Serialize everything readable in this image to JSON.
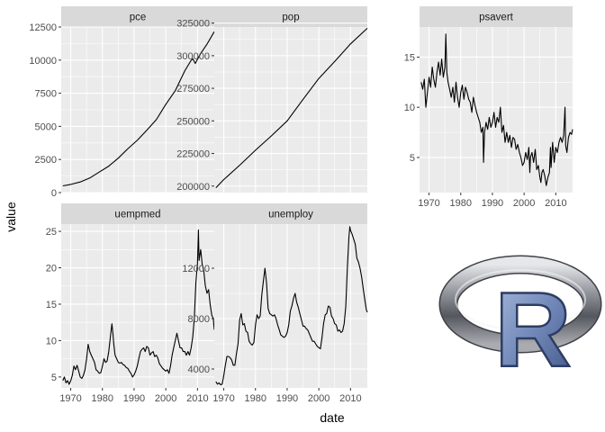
{
  "colors": {
    "panel_bg": "#ebebeb",
    "strip_bg": "#d9d9d9",
    "grid": "#ffffff",
    "line": "#000000",
    "tick_text": "#4d4d4d",
    "logo_ring": "#9a9ca3",
    "logo_letter": "#6d84b5"
  },
  "logo": {
    "icon": "r-logo-icon",
    "letter": "R"
  },
  "chart_data": {
    "type": "line",
    "facet_by": "variable",
    "xlabel": "date",
    "ylabel": "value",
    "xlim": [
      1967,
      2015.3
    ],
    "x_ticks": [
      1970,
      1980,
      1990,
      2000,
      2010
    ],
    "x_tick_labels": [
      "1970",
      "1980",
      "1990",
      "2000",
      "2010"
    ],
    "grid": true,
    "panels": [
      {
        "name": "pce",
        "ylim": [
          0,
          12500
        ],
        "y_ticks": [
          0,
          2500,
          5000,
          7500,
          10000,
          12500
        ],
        "y_tick_labels": [
          "0",
          "2500",
          "5000",
          "7500",
          "10000",
          "12500"
        ],
        "x": [
          1967.5,
          1970,
          1973,
          1976,
          1979,
          1982,
          1985,
          1988,
          1991,
          1994,
          1997,
          2000,
          2003,
          2006,
          2007.9,
          2008.5,
          2009.3,
          2011,
          2013,
          2015.3
        ],
        "y": [
          507,
          620,
          800,
          1100,
          1550,
          2000,
          2600,
          3300,
          3950,
          4700,
          5500,
          6650,
          7700,
          9200,
          9950,
          10100,
          9750,
          10500,
          11200,
          12150
        ]
      },
      {
        "name": "pop",
        "ylim": [
          195000,
          322000
        ],
        "y_ticks": [
          200000,
          225000,
          250000,
          275000,
          300000,
          325000
        ],
        "y_tick_labels": [
          "200000",
          "225000",
          "250000",
          "275000",
          "300000",
          "325000"
        ],
        "x": [
          1967.5,
          1970,
          1975,
          1980,
          1985,
          1990,
          1995,
          2000,
          2005,
          2010,
          2015.3
        ],
        "y": [
          198700,
          205000,
          216000,
          227500,
          238500,
          250000,
          266500,
          282500,
          295500,
          309000,
          321000
        ]
      },
      {
        "name": "psavert",
        "ylim": [
          1.5,
          18
        ],
        "y_ticks": [
          5,
          10,
          15
        ],
        "y_tick_labels": [
          "5",
          "10",
          "15"
        ],
        "x": [
          1967.5,
          1968,
          1968.5,
          1969,
          1969.5,
          1970,
          1970.5,
          1971,
          1971.5,
          1972,
          1972.5,
          1973,
          1973.5,
          1974,
          1974.5,
          1975,
          1975.3,
          1975.6,
          1976,
          1976.5,
          1977,
          1977.5,
          1978,
          1978.5,
          1979,
          1979.5,
          1980,
          1980.5,
          1981,
          1981.5,
          1982,
          1982.5,
          1983,
          1983.5,
          1984,
          1984.5,
          1985,
          1985.5,
          1986,
          1986.5,
          1987,
          1987.2,
          1987.5,
          1988,
          1988.5,
          1989,
          1989.5,
          1990,
          1990.5,
          1991,
          1991.5,
          1992,
          1992.5,
          1993,
          1993.5,
          1994,
          1994.5,
          1995,
          1995.5,
          1996,
          1996.5,
          1997,
          1997.5,
          1998,
          1998.5,
          1999,
          1999.5,
          2000,
          2000.5,
          2001,
          2001.5,
          2001.8,
          2002,
          2002.5,
          2003,
          2003.5,
          2004,
          2004.5,
          2005,
          2005.3,
          2005.6,
          2006,
          2006.5,
          2007,
          2007.5,
          2008,
          2008.3,
          2008.5,
          2009,
          2009.5,
          2010,
          2010.5,
          2011,
          2011.5,
          2012,
          2012.5,
          2012.9,
          2013.1,
          2013.5,
          2014,
          2014.5,
          2015,
          2015.3
        ],
        "y": [
          12.5,
          11.8,
          12.8,
          10.0,
          11.5,
          13.0,
          12.0,
          14.0,
          12.8,
          12.0,
          13.5,
          14.5,
          13.2,
          14.8,
          13.0,
          14.0,
          17.3,
          13.5,
          12.5,
          11.8,
          11.0,
          12.0,
          10.5,
          12.5,
          11.0,
          10.0,
          11.5,
          12.2,
          10.8,
          12.0,
          11.5,
          10.8,
          10.5,
          9.5,
          11.0,
          10.2,
          9.5,
          9.0,
          8.5,
          7.5,
          8.0,
          4.5,
          7.5,
          8.5,
          7.8,
          9.0,
          8.0,
          8.5,
          9.5,
          8.0,
          9.0,
          8.5,
          10.0,
          7.5,
          8.2,
          6.5,
          7.5,
          6.5,
          7.2,
          6.0,
          7.0,
          6.8,
          5.8,
          6.3,
          5.5,
          5.0,
          4.2,
          4.5,
          5.5,
          4.8,
          6.0,
          3.5,
          5.0,
          5.5,
          4.5,
          5.8,
          3.8,
          4.2,
          3.0,
          2.5,
          3.5,
          3.8,
          3.2,
          2.2,
          3.0,
          3.5,
          6.0,
          4.0,
          6.5,
          4.5,
          6.0,
          5.5,
          6.5,
          7.0,
          6.5,
          7.2,
          10.0,
          6.2,
          5.5,
          7.0,
          7.5,
          7.3,
          7.8
        ]
      },
      {
        "name": "uempmed",
        "ylim": [
          3.5,
          26
        ],
        "y_ticks": [
          5,
          10,
          15,
          20,
          25
        ],
        "y_tick_labels": [
          "5",
          "10",
          "15",
          "20",
          "25"
        ],
        "x": [
          1967.5,
          1968,
          1968.5,
          1969,
          1969.5,
          1970,
          1970.5,
          1971,
          1971.5,
          1972,
          1972.5,
          1973,
          1973.5,
          1974,
          1974.5,
          1975,
          1975.5,
          1976,
          1976.5,
          1977,
          1977.5,
          1978,
          1978.5,
          1979,
          1979.5,
          1980,
          1980.5,
          1981,
          1981.5,
          1982,
          1982.5,
          1983,
          1983.3,
          1983.6,
          1984,
          1984.5,
          1985,
          1985.5,
          1986,
          1986.5,
          1987,
          1987.5,
          1988,
          1988.5,
          1989,
          1989.5,
          1990,
          1990.5,
          1991,
          1991.5,
          1992,
          1992.5,
          1993,
          1993.5,
          1994,
          1994.5,
          1995,
          1995.5,
          1996,
          1996.5,
          1997,
          1997.5,
          1998,
          1998.5,
          1999,
          1999.5,
          2000,
          2000.5,
          2001,
          2001.5,
          2002,
          2002.5,
          2003,
          2003.5,
          2004,
          2004.5,
          2005,
          2005.5,
          2006,
          2006.5,
          2007,
          2007.5,
          2008,
          2008.5,
          2009,
          2009.5,
          2010,
          2010.3,
          2010.5,
          2011,
          2011.5,
          2012,
          2012.5,
          2013,
          2013.5,
          2014,
          2014.5,
          2015,
          2015.3
        ],
        "y": [
          4.5,
          5.0,
          4.2,
          4.5,
          4.0,
          4.5,
          5.2,
          6.5,
          6.0,
          6.6,
          5.8,
          5.0,
          4.8,
          5.2,
          6.0,
          7.5,
          9.5,
          8.5,
          8.0,
          7.5,
          7.0,
          6.0,
          5.8,
          5.5,
          5.6,
          6.5,
          7.5,
          7.0,
          7.2,
          8.5,
          10.5,
          12.3,
          11.0,
          9.5,
          8.0,
          7.5,
          7.0,
          6.9,
          7.0,
          6.7,
          6.6,
          6.3,
          6.2,
          5.8,
          5.5,
          5.0,
          5.3,
          5.8,
          6.5,
          7.5,
          8.5,
          8.8,
          9.0,
          8.5,
          9.2,
          9.0,
          8.0,
          8.3,
          8.5,
          7.8,
          8.0,
          7.6,
          6.8,
          6.5,
          6.2,
          6.0,
          5.8,
          6.0,
          5.5,
          6.5,
          8.0,
          9.0,
          10.0,
          11.0,
          10.0,
          9.0,
          9.0,
          8.5,
          8.5,
          8.0,
          8.5,
          8.0,
          9.0,
          10.5,
          13.0,
          18.0,
          20.5,
          25.2,
          21.0,
          22.5,
          20.5,
          19.5,
          17.5,
          16.5,
          17.0,
          15.0,
          13.5,
          13.0,
          11.5
        ]
      },
      {
        "name": "unemploy",
        "ylim": [
          2500,
          15500
        ],
        "y_ticks": [
          4000,
          8000,
          12000
        ],
        "y_tick_labels": [
          "4000",
          "8000",
          "12000"
        ],
        "x": [
          1967.5,
          1968,
          1968.5,
          1969,
          1969.5,
          1970,
          1970.5,
          1971,
          1971.5,
          1972,
          1972.5,
          1973,
          1973.5,
          1974,
          1974.5,
          1975,
          1975.5,
          1976,
          1976.5,
          1977,
          1977.5,
          1978,
          1978.5,
          1979,
          1979.5,
          1980,
          1980.5,
          1981,
          1981.5,
          1982,
          1982.5,
          1983,
          1983.5,
          1984,
          1984.5,
          1985,
          1985.5,
          1986,
          1986.5,
          1987,
          1987.5,
          1988,
          1988.5,
          1989,
          1989.5,
          1990,
          1990.5,
          1991,
          1991.5,
          1992,
          1992.5,
          1993,
          1993.5,
          1994,
          1994.5,
          1995,
          1995.5,
          1996,
          1996.5,
          1997,
          1997.5,
          1998,
          1998.5,
          1999,
          1999.5,
          2000,
          2000.5,
          2001,
          2001.5,
          2002,
          2002.5,
          2003,
          2003.5,
          2004,
          2004.5,
          2005,
          2005.5,
          2006,
          2006.5,
          2007,
          2007.5,
          2008,
          2008.5,
          2009,
          2009.5,
          2009.8,
          2010,
          2010.5,
          2011,
          2011.5,
          2012,
          2012.5,
          2013,
          2013.5,
          2014,
          2014.5,
          2015,
          2015.3
        ],
        "y": [
          3000,
          2800,
          2900,
          2750,
          2800,
          3500,
          4300,
          5000,
          5000,
          4900,
          4700,
          4300,
          4300,
          5200,
          6000,
          7900,
          8400,
          7500,
          7600,
          7000,
          6900,
          6200,
          6000,
          5900,
          6100,
          7500,
          8300,
          8000,
          8200,
          9900,
          11000,
          12000,
          10800,
          8800,
          8400,
          8300,
          8200,
          8300,
          8000,
          7500,
          7100,
          6700,
          6600,
          6500,
          6600,
          6900,
          7500,
          8600,
          9000,
          9600,
          10000,
          9300,
          8900,
          8400,
          7900,
          7400,
          7400,
          7200,
          7100,
          6800,
          6500,
          6200,
          6200,
          6000,
          5800,
          5700,
          5600,
          6500,
          7600,
          8300,
          8400,
          9000,
          8900,
          8200,
          8000,
          7600,
          7500,
          7000,
          7100,
          6900,
          7000,
          7600,
          9000,
          12000,
          14500,
          15300,
          15000,
          14700,
          14300,
          13900,
          12800,
          12500,
          12000,
          11300,
          10400,
          9500,
          8700,
          8500
        ]
      }
    ]
  }
}
